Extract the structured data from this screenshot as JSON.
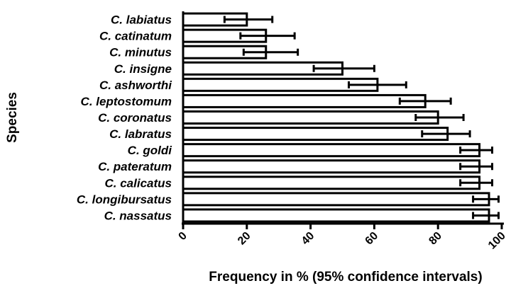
{
  "chart_data": {
    "type": "bar",
    "orientation": "horizontal",
    "xlabel": "Frequency in % (95% confidence intervals)",
    "ylabel": "Species",
    "xlim": [
      0,
      100
    ],
    "xticks": [
      "0",
      "20",
      "40",
      "60",
      "80",
      "100"
    ],
    "categories": [
      "C. labiatus",
      "C. catinatum",
      "C. minutus",
      "C. insigne",
      "C. ashworthi",
      "C. leptostomum",
      "C. coronatus",
      "C. labratus",
      "C. goldi",
      "C. pateratum",
      "C. calicatus",
      "C. longibursatus",
      "C. nassatus"
    ],
    "values": [
      20,
      26,
      26,
      50,
      61,
      76,
      80,
      83,
      93,
      93,
      93,
      96,
      96
    ],
    "ci_low": [
      13,
      18,
      19,
      41,
      52,
      68,
      73,
      75,
      87,
      87,
      87,
      91,
      91
    ],
    "ci_high": [
      28,
      35,
      36,
      60,
      70,
      84,
      88,
      90,
      97,
      97,
      97,
      99,
      99
    ],
    "grid": false,
    "legend": "none"
  }
}
